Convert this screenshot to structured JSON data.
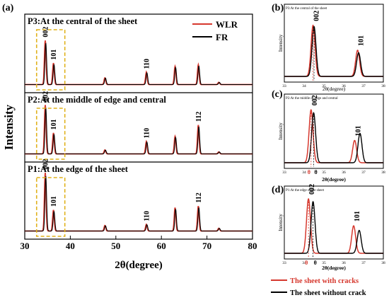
{
  "figure": {
    "panel_labels": {
      "a": "(a)",
      "b": "(b)",
      "c": "(c)",
      "d": "(d)"
    },
    "main_xlabel": "2θ(degree)",
    "main_ylabel": "Intensity",
    "small_ylabel": "Intensity",
    "small_xlabel": "2θ(degree)",
    "legend_wlr": "WLR",
    "legend_fr": "FR",
    "bottom_legend_cracks": "The sheet with cracks",
    "bottom_legend_nocrack": "The sheet without crack",
    "theta0": "θ",
    "theta0_sub": "0",
    "theta0_prime": "θ",
    "theta0_prime_sub": "0'",
    "colors": {
      "wlr": "#d6382e",
      "fr": "#000000",
      "box": "#e0b21c"
    }
  },
  "chart_data": [
    {
      "panel": "(a)",
      "type": "line",
      "xlabel": "2θ(degree)",
      "ylabel": "Intensity",
      "xlim": [
        30,
        80
      ],
      "xticks": [
        30,
        40,
        50,
        60,
        70,
        80
      ],
      "series": [
        {
          "name": "WLR",
          "color": "#d6382e"
        },
        {
          "name": "FR",
          "color": "#000000"
        }
      ],
      "subplots": [
        {
          "title": "P3:At the central of the sheet",
          "peaks": [
            {
              "x": 34.5,
              "h": 0.78,
              "label": "002"
            },
            {
              "x": 36.3,
              "h": 0.38,
              "label": "101"
            },
            {
              "x": 47.6,
              "h": 0.12,
              "label": ""
            },
            {
              "x": 56.7,
              "h": 0.22,
              "label": "110"
            },
            {
              "x": 63.0,
              "h": 0.32,
              "label": ""
            },
            {
              "x": 68.1,
              "h": 0.35,
              "label": ""
            },
            {
              "x": 72.6,
              "h": 0.04,
              "label": ""
            }
          ]
        },
        {
          "title": "P2:At the middle of edge and central",
          "peaks": [
            {
              "x": 34.5,
              "h": 0.98,
              "label": "002"
            },
            {
              "x": 36.3,
              "h": 0.42,
              "label": "101"
            },
            {
              "x": 47.6,
              "h": 0.08,
              "label": ""
            },
            {
              "x": 56.7,
              "h": 0.25,
              "label": "110"
            },
            {
              "x": 63.0,
              "h": 0.35,
              "label": ""
            },
            {
              "x": 68.1,
              "h": 0.58,
              "label": "112"
            },
            {
              "x": 72.6,
              "h": 0.04,
              "label": ""
            }
          ]
        },
        {
          "title": "P1:At the edge of the sheet",
          "peaks": [
            {
              "x": 34.5,
              "h": 1.05,
              "label": "002"
            },
            {
              "x": 36.3,
              "h": 0.38,
              "label": "101"
            },
            {
              "x": 47.6,
              "h": 0.1,
              "label": ""
            },
            {
              "x": 56.7,
              "h": 0.12,
              "label": "110"
            },
            {
              "x": 63.0,
              "h": 0.42,
              "label": ""
            },
            {
              "x": 68.1,
              "h": 0.45,
              "label": "112"
            },
            {
              "x": 72.6,
              "h": 0.05,
              "label": ""
            }
          ]
        }
      ]
    },
    {
      "panel": "(b)",
      "type": "line",
      "title": "P3:At the central of the sheet",
      "xlim": [
        33,
        38
      ],
      "xticks": [
        33,
        34,
        35,
        36,
        37,
        38
      ],
      "wlr_peaks": [
        {
          "x": 34.45,
          "h": 0.82,
          "label": "002"
        },
        {
          "x": 36.7,
          "h": 0.42,
          "label": "101"
        }
      ],
      "fr_peaks": [
        {
          "x": 34.5,
          "h": 0.8
        },
        {
          "x": 36.75,
          "h": 0.38
        }
      ]
    },
    {
      "panel": "(c)",
      "type": "line",
      "title": "P2:At the middle of edge and central",
      "xlim": [
        33,
        38
      ],
      "xticks": [
        33,
        34,
        35,
        36,
        37,
        38
      ],
      "wlr_peaks": [
        {
          "x": 34.35,
          "h": 0.9,
          "label": "002"
        },
        {
          "x": 36.55,
          "h": 0.38,
          "label": "101"
        }
      ],
      "fr_peaks": [
        {
          "x": 34.48,
          "h": 0.85
        },
        {
          "x": 36.82,
          "h": 0.5
        }
      ]
    },
    {
      "panel": "(d)",
      "type": "line",
      "title": "P1:At the edge of the sheet",
      "xlim": [
        33,
        38
      ],
      "xticks": [
        33,
        34,
        35,
        36,
        37,
        38
      ],
      "wlr_peaks": [
        {
          "x": 34.22,
          "h": 0.95,
          "label": "002"
        },
        {
          "x": 36.5,
          "h": 0.48,
          "label": "101"
        }
      ],
      "fr_peaks": [
        {
          "x": 34.45,
          "h": 0.9
        },
        {
          "x": 36.78,
          "h": 0.4
        }
      ]
    }
  ]
}
